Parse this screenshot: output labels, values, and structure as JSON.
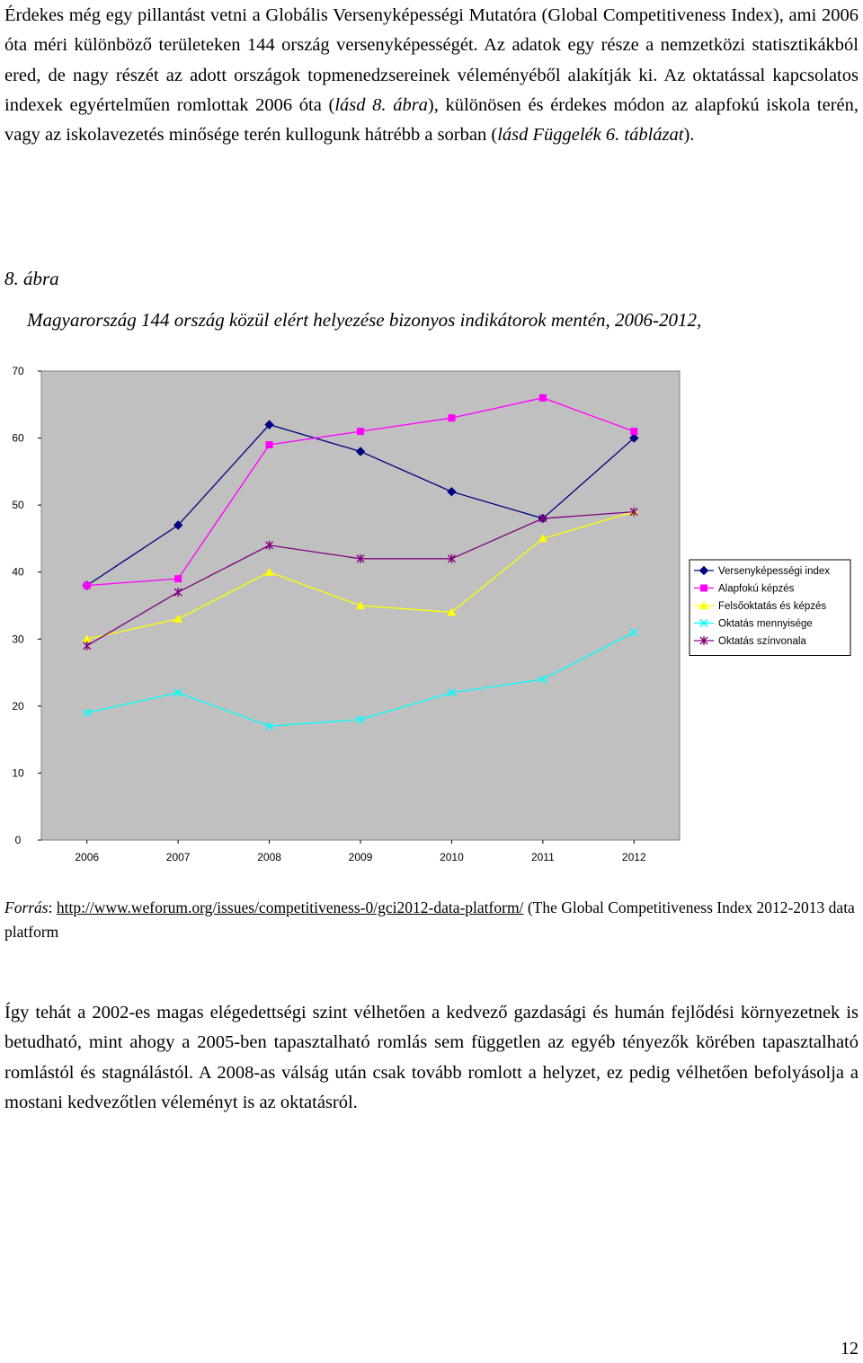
{
  "intro": {
    "segments": [
      {
        "text": "Érdekes még egy pillantást vetni a Globális Versenyképességi Mutatóra (Global Competitiveness Index), ami 2006 óta méri különböző területeken 144 ország versenyképességét. Az adatok egy része a nemzetközi statisztikákból ered, de nagy részét az adott országok topmenedzsereinek véleményéből alakítják ki. Az oktatással kapcsolatos indexek egyértelműen romlottak 2006 óta (",
        "italic": false
      },
      {
        "text": "lásd 8. ábra",
        "italic": true
      },
      {
        "text": "), különösen és érdekes módon az alapfokú iskola terén, vagy az iskolavezetés minősége terén kullogunk hátrébb a sorban (",
        "italic": false
      },
      {
        "text": "lásd Függelék 6. táblázat",
        "italic": true
      },
      {
        "text": ").",
        "italic": false
      }
    ]
  },
  "figure": {
    "number": "8. ábra",
    "title": "Magyarország 144 ország közül elért helyezése bizonyos indikátorok mentén, 2006-2012,"
  },
  "chart_data": {
    "type": "line",
    "title": "",
    "xlabel": "",
    "ylabel": "",
    "categories": [
      "2006",
      "2007",
      "2008",
      "2009",
      "2010",
      "2011",
      "2012"
    ],
    "ylim": [
      0,
      70
    ],
    "yticks": [
      0,
      10,
      20,
      30,
      40,
      50,
      60,
      70
    ],
    "grid": false,
    "plot_background": "#c0c0c0",
    "legend_position": "right",
    "series": [
      {
        "name": "Versenyképességi index",
        "values": [
          38,
          47,
          62,
          58,
          52,
          48,
          60
        ],
        "color": "#000080",
        "marker": "diamond"
      },
      {
        "name": "Alapfokú képzés",
        "values": [
          38,
          39,
          59,
          61,
          63,
          66,
          61
        ],
        "color": "#ff00ff",
        "marker": "square"
      },
      {
        "name": "Felsőoktatás és képzés",
        "values": [
          30,
          33,
          40,
          35,
          34,
          45,
          49
        ],
        "color": "#ffff00",
        "marker": "triangle"
      },
      {
        "name": "Oktatás mennyisége",
        "values": [
          19,
          22,
          17,
          18,
          22,
          24,
          31
        ],
        "color": "#00ffff",
        "marker": "x"
      },
      {
        "name": "Oktatás színvonala",
        "values": [
          29,
          37,
          44,
          42,
          42,
          48,
          49
        ],
        "color": "#800080",
        "marker": "star"
      }
    ]
  },
  "source": {
    "label": "Forrás",
    "colon": ": ",
    "url": "http://www.weforum.org/issues/competitiveness-0/gci2012-data-platform/",
    "rest": " (The Global Competitiveness Index 2012-2013 data platform"
  },
  "closing": {
    "text": "Így tehát a 2002-es magas elégedettségi szint vélhetően a kedvező gazdasági és humán fejlődési környezetnek is betudható, mint ahogy a 2005-ben tapasztalható romlás sem független az egyéb tényezők körében tapasztalható romlástól és stagnálástól. A 2008-as válság után csak tovább romlott a helyzet, ez pedig vélhetően befolyásolja a mostani kedvezőtlen véleményt is az oktatásról."
  },
  "page_number": "12"
}
